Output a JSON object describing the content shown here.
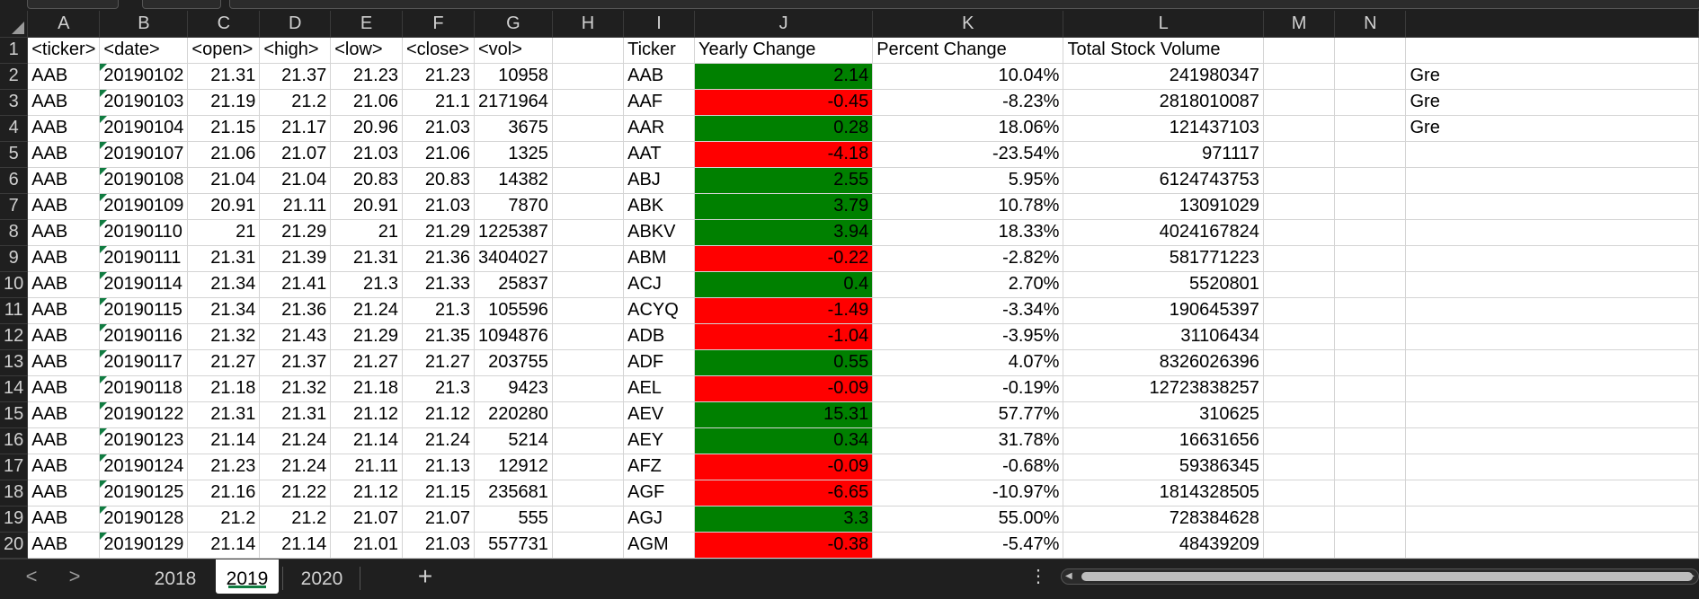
{
  "columns": [
    "A",
    "B",
    "C",
    "D",
    "E",
    "F",
    "G",
    "H",
    "I",
    "J",
    "K",
    "L",
    "M",
    "N"
  ],
  "header_row": {
    "row_num": "1",
    "a": "<ticker>",
    "b": "<date>",
    "c": "<open>",
    "d": "<high>",
    "e": "<low>",
    "f": "<close>",
    "g": "<vol>",
    "i": "Ticker",
    "j": "Yearly Change",
    "k": "Percent Change",
    "l": "Total Stock Volume"
  },
  "rows": [
    {
      "n": "2",
      "a": "AAB",
      "b": "20190102",
      "c": "21.31",
      "d": "21.37",
      "e": "21.23",
      "f": "21.23",
      "g": "10958",
      "i": "AAB",
      "j": "2.14",
      "j_sign": "pos",
      "k": "10.04%",
      "l": "241980347",
      "o": "Gre"
    },
    {
      "n": "3",
      "a": "AAB",
      "b": "20190103",
      "c": "21.19",
      "d": "21.2",
      "e": "21.06",
      "f": "21.1",
      "g": "2171964",
      "i": "AAF",
      "j": "-0.45",
      "j_sign": "neg",
      "k": "-8.23%",
      "l": "2818010087",
      "o": "Gre"
    },
    {
      "n": "4",
      "a": "AAB",
      "b": "20190104",
      "c": "21.15",
      "d": "21.17",
      "e": "20.96",
      "f": "21.03",
      "g": "3675",
      "i": "AAR",
      "j": "0.28",
      "j_sign": "pos",
      "k": "18.06%",
      "l": "121437103",
      "o": "Gre"
    },
    {
      "n": "5",
      "a": "AAB",
      "b": "20190107",
      "c": "21.06",
      "d": "21.07",
      "e": "21.03",
      "f": "21.06",
      "g": "1325",
      "i": "AAT",
      "j": "-4.18",
      "j_sign": "neg",
      "k": "-23.54%",
      "l": "971117",
      "o": ""
    },
    {
      "n": "6",
      "a": "AAB",
      "b": "20190108",
      "c": "21.04",
      "d": "21.04",
      "e": "20.83",
      "f": "20.83",
      "g": "14382",
      "i": "ABJ",
      "j": "2.55",
      "j_sign": "pos",
      "k": "5.95%",
      "l": "6124743753",
      "o": ""
    },
    {
      "n": "7",
      "a": "AAB",
      "b": "20190109",
      "c": "20.91",
      "d": "21.11",
      "e": "20.91",
      "f": "21.03",
      "g": "7870",
      "i": "ABK",
      "j": "3.79",
      "j_sign": "pos",
      "k": "10.78%",
      "l": "13091029",
      "o": ""
    },
    {
      "n": "8",
      "a": "AAB",
      "b": "20190110",
      "c": "21",
      "d": "21.29",
      "e": "21",
      "f": "21.29",
      "g": "1225387",
      "i": "ABKV",
      "j": "3.94",
      "j_sign": "pos",
      "k": "18.33%",
      "l": "4024167824",
      "o": ""
    },
    {
      "n": "9",
      "a": "AAB",
      "b": "20190111",
      "c": "21.31",
      "d": "21.39",
      "e": "21.31",
      "f": "21.36",
      "g": "3404027",
      "i": "ABM",
      "j": "-0.22",
      "j_sign": "neg",
      "k": "-2.82%",
      "l": "581771223",
      "o": ""
    },
    {
      "n": "10",
      "a": "AAB",
      "b": "20190114",
      "c": "21.34",
      "d": "21.41",
      "e": "21.3",
      "f": "21.33",
      "g": "25837",
      "i": "ACJ",
      "j": "0.4",
      "j_sign": "pos",
      "k": "2.70%",
      "l": "5520801",
      "o": ""
    },
    {
      "n": "11",
      "a": "AAB",
      "b": "20190115",
      "c": "21.34",
      "d": "21.36",
      "e": "21.24",
      "f": "21.3",
      "g": "105596",
      "i": "ACYQ",
      "j": "-1.49",
      "j_sign": "neg",
      "k": "-3.34%",
      "l": "190645397",
      "o": ""
    },
    {
      "n": "12",
      "a": "AAB",
      "b": "20190116",
      "c": "21.32",
      "d": "21.43",
      "e": "21.29",
      "f": "21.35",
      "g": "1094876",
      "i": "ADB",
      "j": "-1.04",
      "j_sign": "neg",
      "k": "-3.95%",
      "l": "31106434",
      "o": ""
    },
    {
      "n": "13",
      "a": "AAB",
      "b": "20190117",
      "c": "21.27",
      "d": "21.37",
      "e": "21.27",
      "f": "21.27",
      "g": "203755",
      "i": "ADF",
      "j": "0.55",
      "j_sign": "pos",
      "k": "4.07%",
      "l": "8326026396",
      "o": ""
    },
    {
      "n": "14",
      "a": "AAB",
      "b": "20190118",
      "c": "21.18",
      "d": "21.32",
      "e": "21.18",
      "f": "21.3",
      "g": "9423",
      "i": "AEL",
      "j": "-0.09",
      "j_sign": "neg",
      "k": "-0.19%",
      "l": "12723838257",
      "o": ""
    },
    {
      "n": "15",
      "a": "AAB",
      "b": "20190122",
      "c": "21.31",
      "d": "21.31",
      "e": "21.12",
      "f": "21.12",
      "g": "220280",
      "i": "AEV",
      "j": "15.31",
      "j_sign": "pos",
      "k": "57.77%",
      "l": "310625",
      "o": ""
    },
    {
      "n": "16",
      "a": "AAB",
      "b": "20190123",
      "c": "21.14",
      "d": "21.24",
      "e": "21.14",
      "f": "21.24",
      "g": "5214",
      "i": "AEY",
      "j": "0.34",
      "j_sign": "pos",
      "k": "31.78%",
      "l": "16631656",
      "o": ""
    },
    {
      "n": "17",
      "a": "AAB",
      "b": "20190124",
      "c": "21.23",
      "d": "21.24",
      "e": "21.11",
      "f": "21.13",
      "g": "12912",
      "i": "AFZ",
      "j": "-0.09",
      "j_sign": "neg",
      "k": "-0.68%",
      "l": "59386345",
      "o": ""
    },
    {
      "n": "18",
      "a": "AAB",
      "b": "20190125",
      "c": "21.16",
      "d": "21.22",
      "e": "21.12",
      "f": "21.15",
      "g": "235681",
      "i": "AGF",
      "j": "-6.65",
      "j_sign": "neg",
      "k": "-10.97%",
      "l": "1814328505",
      "o": ""
    },
    {
      "n": "19",
      "a": "AAB",
      "b": "20190128",
      "c": "21.2",
      "d": "21.2",
      "e": "21.07",
      "f": "21.07",
      "g": "555",
      "i": "AGJ",
      "j": "3.3",
      "j_sign": "pos",
      "k": "55.00%",
      "l": "728384628",
      "o": ""
    },
    {
      "n": "20",
      "a": "AAB",
      "b": "20190129",
      "c": "21.14",
      "d": "21.14",
      "e": "21.01",
      "f": "21.03",
      "g": "557731",
      "i": "AGM",
      "j": "-0.38",
      "j_sign": "neg",
      "k": "-5.47%",
      "l": "48439209",
      "o": ""
    }
  ],
  "sheet_tabs": {
    "prev_icon": "chevron-left-icon",
    "next_icon": "chevron-right-icon",
    "prev_glyph": "<",
    "next_glyph": ">",
    "tabs": [
      "2018",
      "2019",
      "2020"
    ],
    "active": "2019",
    "add_glyph": "+",
    "more_glyph": "⋮"
  },
  "colors": {
    "positive": "#008000",
    "negative": "#ff0000",
    "accent": "#107c41"
  }
}
